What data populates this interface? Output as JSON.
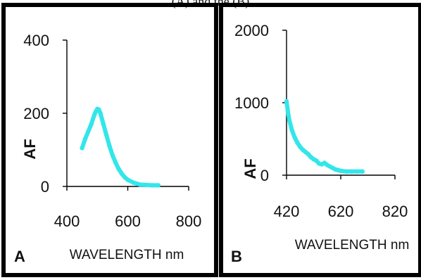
{
  "figure": {
    "top_caption": "(A) and the (B)"
  },
  "chart_data": [
    {
      "type": "line",
      "panel_label": "A",
      "xlabel": "WAVELENGTH nm",
      "ylabel": "AF",
      "xlim": [
        400,
        800
      ],
      "ylim": [
        0,
        400
      ],
      "xticks": [
        "400",
        "600",
        "800"
      ],
      "yticks": [
        "0",
        "200",
        "400"
      ],
      "grid": false,
      "series": [
        {
          "color": "#33e6ea",
          "x": [
            450,
            460,
            470,
            480,
            490,
            495,
            500,
            505,
            510,
            520,
            530,
            540,
            550,
            560,
            570,
            580,
            590,
            600,
            620,
            640,
            660,
            680,
            700
          ],
          "y": [
            105,
            130,
            150,
            170,
            195,
            205,
            212,
            210,
            200,
            170,
            140,
            110,
            85,
            65,
            48,
            35,
            25,
            18,
            10,
            5,
            4,
            3,
            3
          ]
        }
      ]
    },
    {
      "type": "line",
      "panel_label": "B",
      "xlabel": "WAVELENGTH nm",
      "ylabel": "AF",
      "xlim": [
        420,
        820
      ],
      "ylim": [
        0,
        2000
      ],
      "xticks": [
        "420",
        "620",
        "820"
      ],
      "yticks": [
        "0",
        "1000",
        "2000"
      ],
      "grid": false,
      "series": [
        {
          "color": "#33e6ea",
          "x": [
            420,
            425,
            430,
            440,
            450,
            460,
            470,
            480,
            490,
            500,
            510,
            520,
            530,
            540,
            550,
            560,
            570,
            580,
            590,
            600,
            610,
            620,
            640,
            660,
            680,
            700
          ],
          "y": [
            1020,
            880,
            760,
            620,
            520,
            450,
            390,
            350,
            320,
            290,
            250,
            220,
            200,
            160,
            150,
            170,
            140,
            120,
            100,
            80,
            70,
            60,
            50,
            50,
            50,
            50
          ]
        }
      ]
    }
  ]
}
